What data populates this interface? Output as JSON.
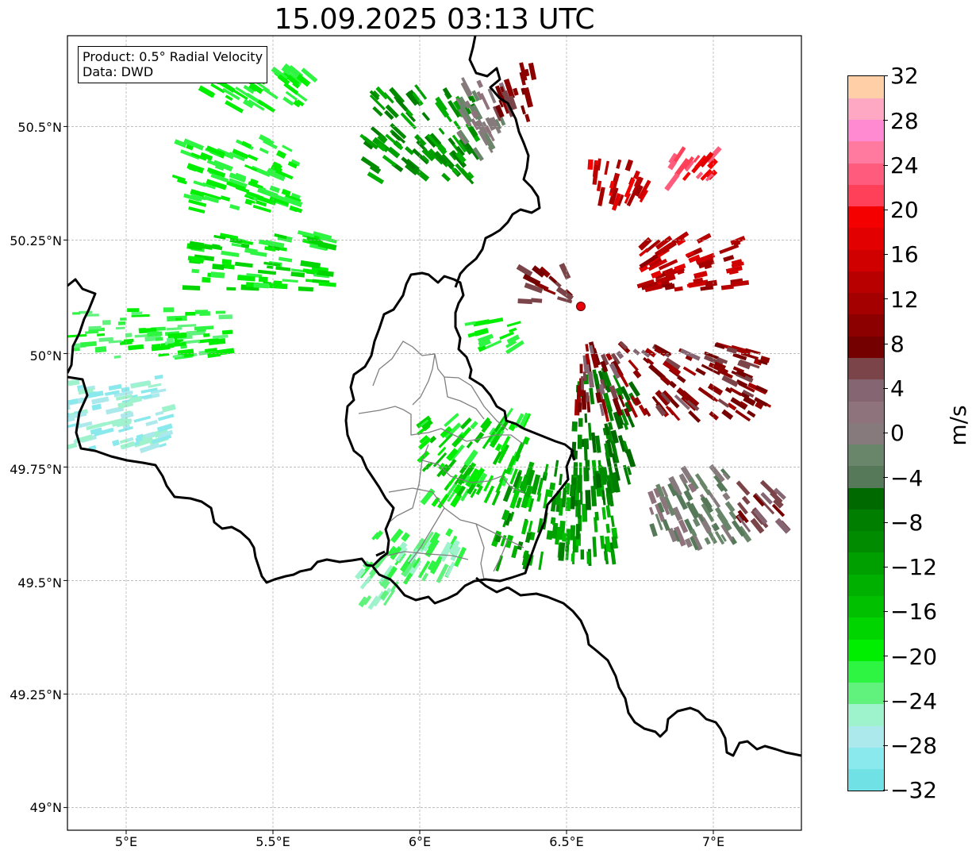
{
  "title": "15.09.2025 03:13 UTC",
  "info": {
    "product": "Product: 0.5° Radial Velocity",
    "data": "Data: DWD"
  },
  "map": {
    "lon_range": [
      4.8,
      7.3
    ],
    "lat_range": [
      48.95,
      50.7
    ],
    "radar_site": {
      "lon": 6.548,
      "lat": 50.108,
      "color": "#e8000b"
    },
    "grid": "on",
    "border_color": "#000000",
    "internal_boundary_color": "#808080"
  },
  "lat_ticks": [
    "50.5°N",
    "50.25°N",
    "50°N",
    "49.75°N",
    "49.5°N",
    "49.25°N",
    "49°N"
  ],
  "lat_tick_values": [
    50.5,
    50.25,
    50.0,
    49.75,
    49.5,
    49.25,
    49.0
  ],
  "lon_ticks": [
    "5°E",
    "5.5°E",
    "6°E",
    "6.5°E",
    "7°E"
  ],
  "lon_tick_values": [
    5.0,
    5.5,
    6.0,
    6.5,
    7.0
  ],
  "colorbar": {
    "unit": "m/s",
    "min": -32,
    "max": 32,
    "tick_labels": [
      "32",
      "28",
      "24",
      "20",
      "16",
      "12",
      "8",
      "4",
      "0",
      "−4",
      "−8",
      "−12",
      "−16",
      "−20",
      "−24",
      "−28",
      "−32"
    ],
    "colors": [
      "#70e2e6",
      "#8ae9ec",
      "#abe9ec",
      "#9ef2cc",
      "#60f27d",
      "#2ef442",
      "#00ee00",
      "#00d500",
      "#00c000",
      "#00b000",
      "#009f00",
      "#008b00",
      "#007e00",
      "#006a00",
      "#56795a",
      "#69856a",
      "#867a7c",
      "#8e727c",
      "#846571",
      "#7a4449",
      "#740000",
      "#8c0000",
      "#a50000",
      "#b90000",
      "#d00000",
      "#e30000",
      "#f40000",
      "#ff4058",
      "#ff5b7d",
      "#ff7a9e",
      "#ff8ad2",
      "#ffa8c4",
      "#ffd0a8"
    ]
  }
}
